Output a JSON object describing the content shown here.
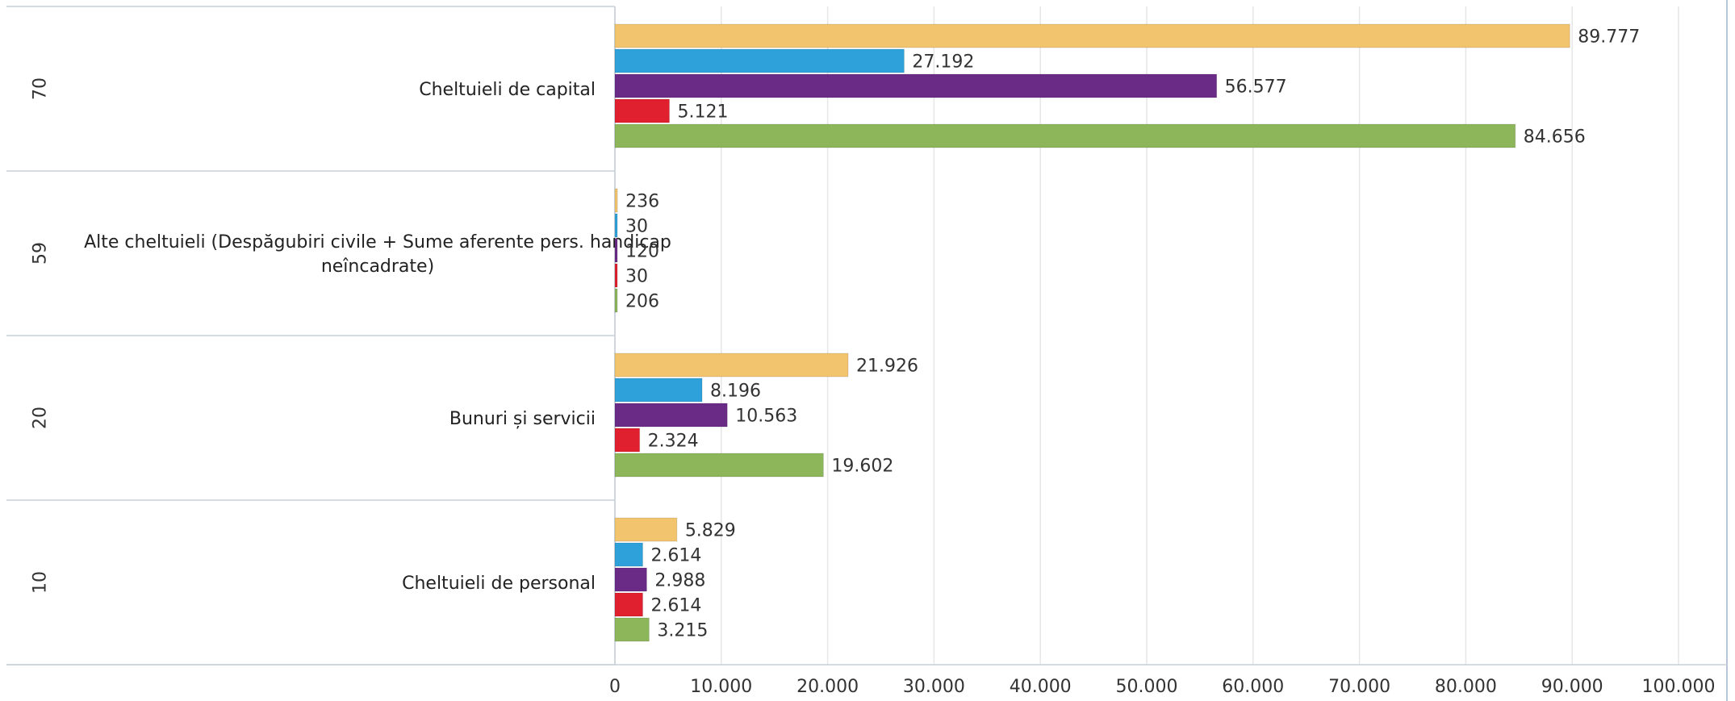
{
  "chart_data": {
    "type": "bar",
    "orientation": "horizontal",
    "categories": [
      {
        "code": "70",
        "label": "Cheltuieli de capital"
      },
      {
        "code": "59",
        "label_lines": [
          "Alte cheltuieli (Despăgubiri civile + Sume aferente pers. handicap",
          "neîncadrate)"
        ]
      },
      {
        "code": "20",
        "label": "Bunuri și servicii"
      },
      {
        "code": "10",
        "label": "Cheltuieli de personal"
      }
    ],
    "series": [
      {
        "color": "#F2C46D",
        "values": [
          89777,
          236,
          21926,
          5829
        ],
        "labels": [
          "89.777",
          "236",
          "21.926",
          "5.829"
        ]
      },
      {
        "color": "#2FA1DA",
        "values": [
          27192,
          30,
          8196,
          2614
        ],
        "labels": [
          "27.192",
          "30",
          "8.196",
          "2.614"
        ]
      },
      {
        "color": "#6A2B87",
        "values": [
          56577,
          120,
          10563,
          2988
        ],
        "labels": [
          "56.577",
          "120",
          "10.563",
          "2.988"
        ]
      },
      {
        "color": "#E0202E",
        "values": [
          5121,
          30,
          2324,
          2614
        ],
        "labels": [
          "5.121",
          "30",
          "2.324",
          "2.614"
        ]
      },
      {
        "color": "#8DB65B",
        "values": [
          84656,
          206,
          19602,
          3215
        ],
        "labels": [
          "84.656",
          "206",
          "19.602",
          "3.215"
        ]
      }
    ],
    "x_ticks": [
      "0",
      "10.000",
      "20.000",
      "30.000",
      "40.000",
      "50.000",
      "60.000",
      "70.000",
      "80.000",
      "90.000",
      "100.000"
    ],
    "xlim": [
      0,
      100000
    ],
    "grid": "vertical",
    "legend": "none"
  }
}
